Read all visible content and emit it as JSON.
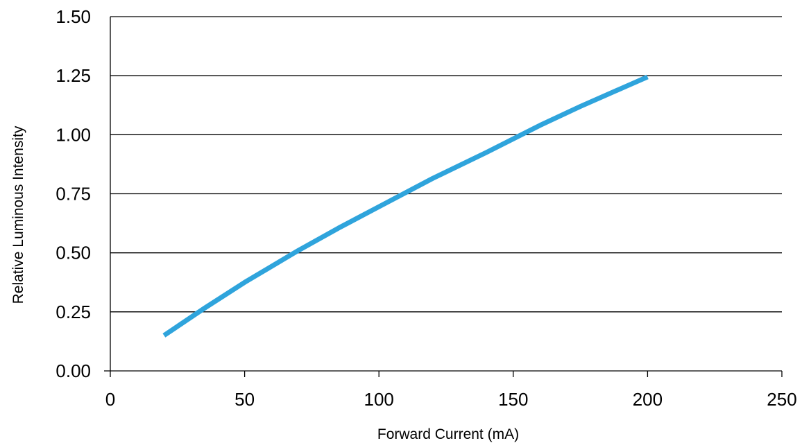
{
  "chart_data": {
    "type": "line",
    "title": "",
    "xlabel": "Forward Current (mA)",
    "ylabel": "Relative Luminous Intensity",
    "xlim": [
      0,
      250
    ],
    "ylim": [
      0,
      1.5
    ],
    "x_ticks": [
      0,
      50,
      100,
      150,
      200,
      250
    ],
    "x_tick_labels": [
      "0",
      "50",
      "100",
      "150",
      "200",
      "250"
    ],
    "y_ticks": [
      0,
      0.25,
      0.5,
      0.75,
      1.0,
      1.25,
      1.5
    ],
    "y_tick_labels": [
      "0.00",
      "0.25",
      "0.50",
      "0.75",
      "1.00",
      "1.25",
      "1.50"
    ],
    "grid": "horizontal",
    "line_color": "#2fa4dc",
    "series": [
      {
        "x": [
          20,
          35,
          50,
          70,
          85,
          100,
          120,
          140,
          160,
          175,
          185,
          200
        ],
        "y": [
          0.15,
          0.265,
          0.375,
          0.51,
          0.605,
          0.695,
          0.815,
          0.925,
          1.04,
          1.12,
          1.17,
          1.245
        ]
      }
    ]
  }
}
